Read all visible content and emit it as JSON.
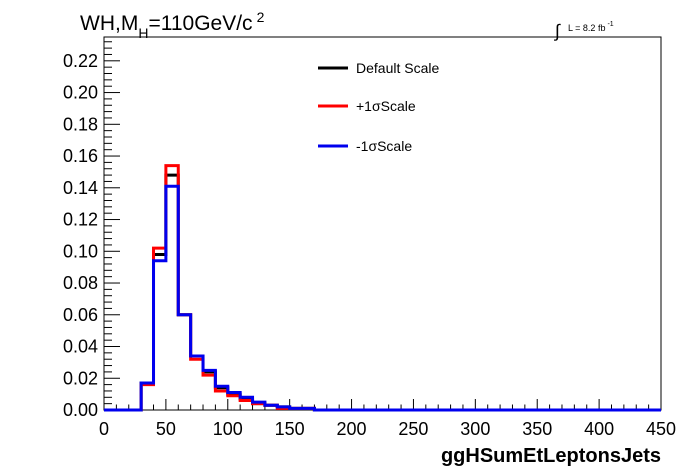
{
  "chart_data": {
    "type": "line",
    "title_main": "WH,M",
    "title_sub": "H",
    "title_rest": "=110GeV/c",
    "title_sup": "2",
    "lumi_label": "L = 8.2 fb",
    "lumi_sup": "-1",
    "xlabel": "ggHSumEtLeptonsJets",
    "ylabel": "",
    "xlim": [
      0,
      450
    ],
    "ylim": [
      0,
      0.235
    ],
    "x_ticks": [
      0,
      50,
      100,
      150,
      200,
      250,
      300,
      350,
      400,
      450
    ],
    "y_ticks": [
      0.0,
      0.02,
      0.04,
      0.06,
      0.08,
      0.1,
      0.12,
      0.14,
      0.16,
      0.18,
      0.2,
      0.22
    ],
    "x_tick_labels": [
      "0",
      "50",
      "100",
      "150",
      "200",
      "250",
      "300",
      "350",
      "400",
      "450"
    ],
    "y_tick_labels": [
      "0.00",
      "0.02",
      "0.04",
      "0.06",
      "0.08",
      "0.10",
      "0.12",
      "0.14",
      "0.16",
      "0.18",
      "0.20",
      "0.22"
    ],
    "bin_edges": [
      0,
      10,
      20,
      30,
      40,
      50,
      60,
      70,
      80,
      90,
      100,
      110,
      120,
      130,
      140,
      150,
      160,
      170,
      450
    ],
    "series": [
      {
        "name": "Default Scale",
        "color": "#000000",
        "values": [
          0,
          0,
          0,
          0.017,
          0.098,
          0.148,
          0.06,
          0.034,
          0.024,
          0.014,
          0.01,
          0.007,
          0.004,
          0.003,
          0.002,
          0.001,
          0.001,
          0
        ]
      },
      {
        "name": "+1σScale",
        "color": "#ff0000",
        "values": [
          0,
          0,
          0,
          0.016,
          0.102,
          0.154,
          0.06,
          0.032,
          0.022,
          0.012,
          0.009,
          0.006,
          0.004,
          0.003,
          0.001,
          0.001,
          0.001,
          0
        ]
      },
      {
        "name": "-1σScale",
        "color": "#0000ee",
        "values": [
          0,
          0,
          0,
          0.017,
          0.094,
          0.141,
          0.06,
          0.034,
          0.025,
          0.015,
          0.011,
          0.008,
          0.005,
          0.003,
          0.002,
          0.001,
          0.001,
          0
        ]
      }
    ],
    "legend_position": "top-center"
  }
}
